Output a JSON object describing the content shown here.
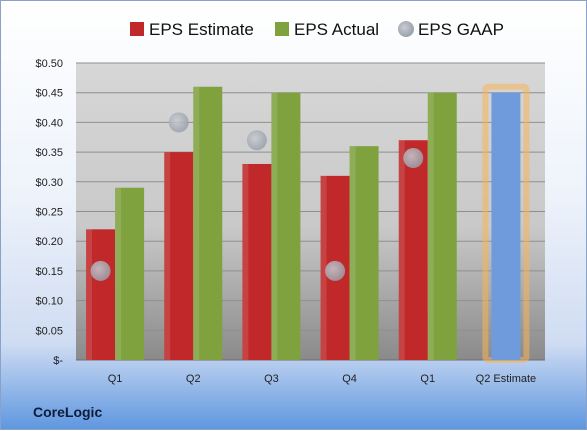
{
  "brand": "CoreLogic",
  "chart_data": {
    "type": "bar",
    "categories": [
      "Q1",
      "Q2",
      "Q3",
      "Q4",
      "Q1",
      "Q2 Estimate"
    ],
    "series": [
      {
        "name": "EPS Estimate",
        "values": [
          0.22,
          0.35,
          0.33,
          0.31,
          0.37,
          null
        ],
        "color": "#c0282a"
      },
      {
        "name": "EPS Actual",
        "values": [
          0.29,
          0.46,
          0.45,
          0.36,
          0.45,
          null
        ],
        "color": "#7fa23f"
      },
      {
        "name": "EPS GAAP",
        "values": [
          0.15,
          0.4,
          0.37,
          0.15,
          0.34,
          null
        ],
        "color": "#b6bcc6"
      }
    ],
    "forecast": {
      "category": "Q2 Estimate",
      "value": 0.45,
      "color": "#6f9bdc",
      "glow": "#f7b455"
    },
    "y_ticks": [
      "$-",
      "$0.05",
      "$0.10",
      "$0.15",
      "$0.20",
      "$0.25",
      "$0.30",
      "$0.35",
      "$0.40",
      "$0.45",
      "$0.50"
    ],
    "ylim": [
      0,
      0.5
    ],
    "legend_position": "top",
    "grid": true
  }
}
